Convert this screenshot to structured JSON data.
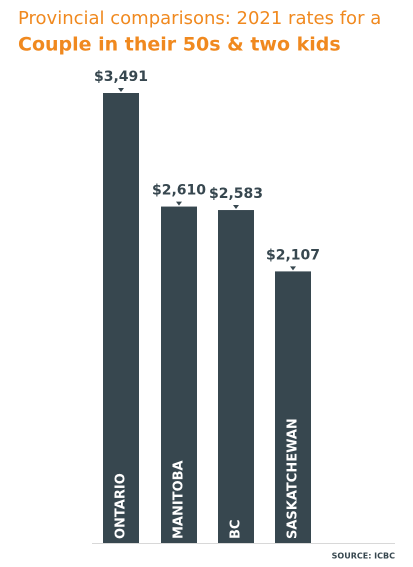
{
  "chart_data": {
    "type": "bar",
    "title": "Provincial comparisons: 2021 rates for a",
    "subtitle": "Couple in their 50s & two kids",
    "categories": [
      "ONTARIO",
      "MANITOBA",
      "BC",
      "SASKATCHEWAN"
    ],
    "values": [
      3491,
      2610,
      2583,
      2107
    ],
    "value_labels": [
      "$3,491",
      "$2,610",
      "$2,583",
      "$2,107"
    ],
    "color": "#37474f",
    "source": "SOURCE: ICBC"
  }
}
